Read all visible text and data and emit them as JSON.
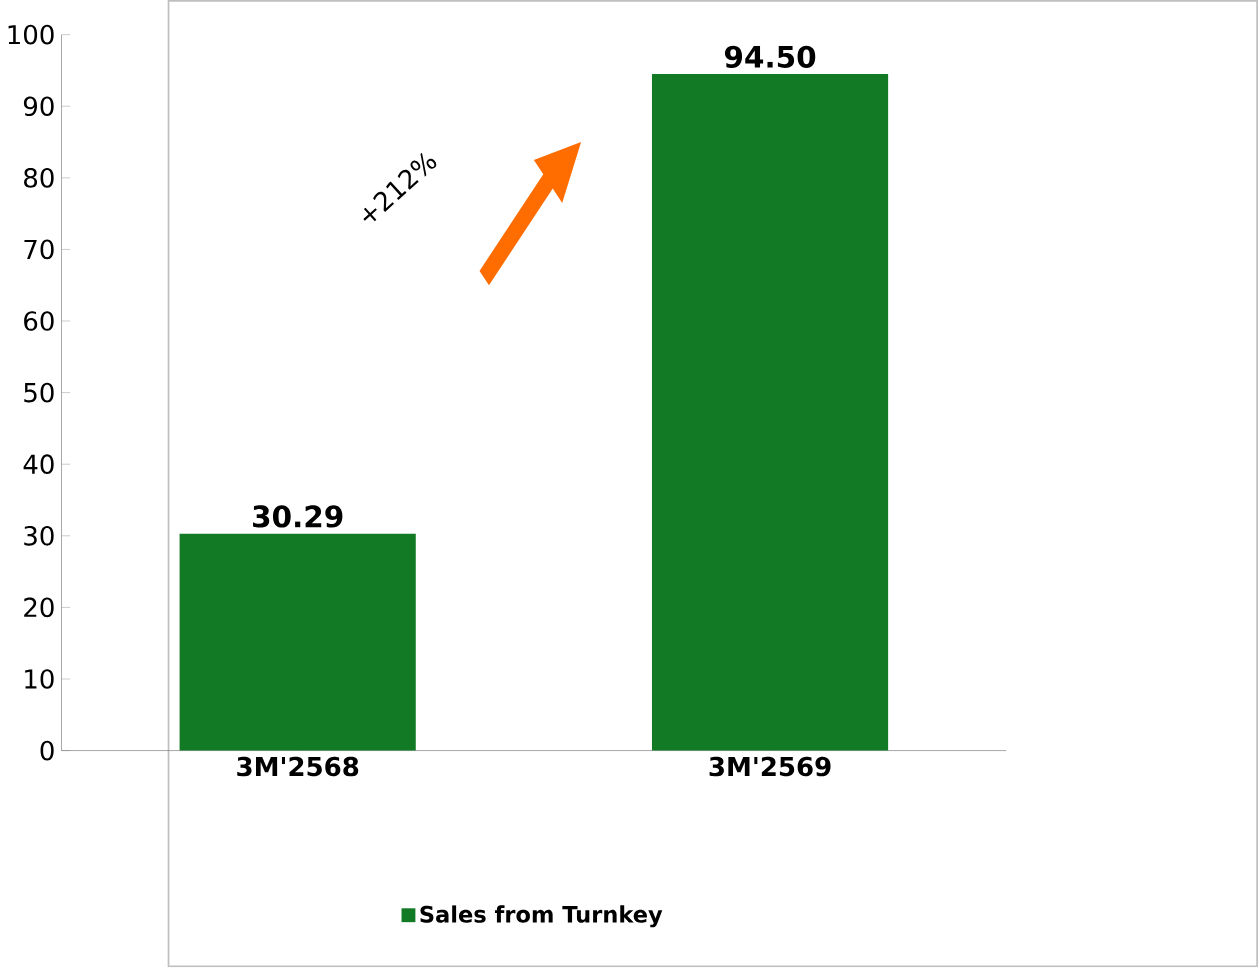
{
  "chart_data": {
    "type": "bar",
    "categories": [
      "3M'2568",
      "3M'2569"
    ],
    "series": [
      {
        "name": "Sales from Turnkey",
        "color": "#127a24",
        "values": [
          30.29,
          94.5
        ],
        "value_labels": [
          "30.29",
          "94.50"
        ]
      }
    ],
    "ylim": [
      0,
      100
    ],
    "yticks": [
      0,
      10,
      20,
      30,
      40,
      50,
      60,
      70,
      80,
      90,
      100
    ],
    "grid": false,
    "legend": "bottom",
    "annotations": [
      "+212%"
    ]
  }
}
